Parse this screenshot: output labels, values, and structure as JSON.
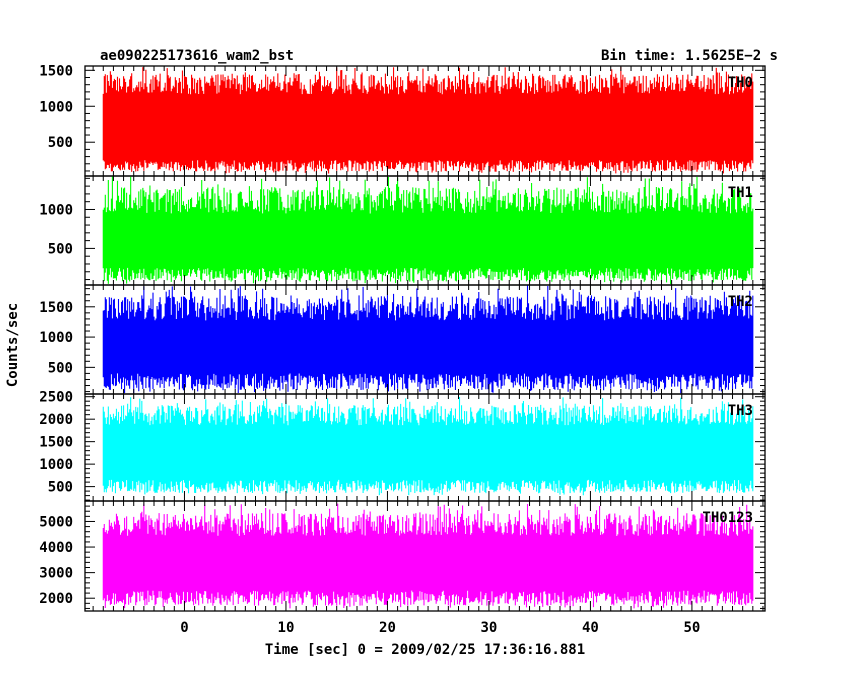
{
  "title_left": "ae090225173616_wam2_bst",
  "title_right": "Bin time: 1.5625E−2 s",
  "xlabel": "Time [sec] 0 = 2009/02/25 17:36:16.881",
  "ylabel": "Counts/sec",
  "chart_data": {
    "type": "line",
    "title": "ae090225173616_wam2_bst",
    "subtitle": "Bin time: 1.5625E−2 s",
    "xlabel": "Time [sec] 0 = 2009/02/25 17:36:16.881",
    "ylabel": "Counts/sec",
    "xlim": [
      -9.8,
      57.2
    ],
    "x_ticks": [
      0,
      10,
      20,
      30,
      40,
      50
    ],
    "data_x_range": [
      -8.0,
      56.0
    ],
    "bin_time": 0.015625,
    "grid": false,
    "series": [
      {
        "name": "TH0",
        "color": "#ff0000",
        "ylim": [
          30,
          1560
        ],
        "y_ticks": [
          500,
          1000,
          1500
        ],
        "baseline": 780,
        "upper_typical": 1250,
        "lower_typical": 250,
        "upper_extreme": 1560,
        "lower_extreme": 60
      },
      {
        "name": "TH1",
        "color": "#00ff00",
        "ylim": [
          30,
          1430
        ],
        "y_ticks": [
          500,
          1000
        ],
        "baseline": 650,
        "upper_typical": 1050,
        "lower_typical": 250,
        "upper_extreme": 1430,
        "lower_extreme": 40
      },
      {
        "name": "TH2",
        "color": "#0000ff",
        "ylim": [
          60,
          1860
        ],
        "y_ticks": [
          500,
          1000,
          1500
        ],
        "baseline": 880,
        "upper_typical": 1400,
        "lower_typical": 400,
        "upper_extreme": 1860,
        "lower_extreme": 70
      },
      {
        "name": "TH3",
        "color": "#00ffff",
        "ylim": [
          180,
          2560
        ],
        "y_ticks": [
          500,
          1000,
          1500,
          2000,
          2500
        ],
        "baseline": 1300,
        "upper_typical": 2000,
        "lower_typical": 650,
        "upper_extreme": 2500,
        "lower_extreme": 300
      },
      {
        "name": "TH0123",
        "color": "#ff00ff",
        "ylim": [
          1500,
          5800
        ],
        "y_ticks": [
          2000,
          3000,
          4000,
          5000
        ],
        "baseline": 3400,
        "upper_typical": 4700,
        "lower_typical": 2300,
        "upper_extreme": 5700,
        "lower_extreme": 1600
      }
    ]
  }
}
